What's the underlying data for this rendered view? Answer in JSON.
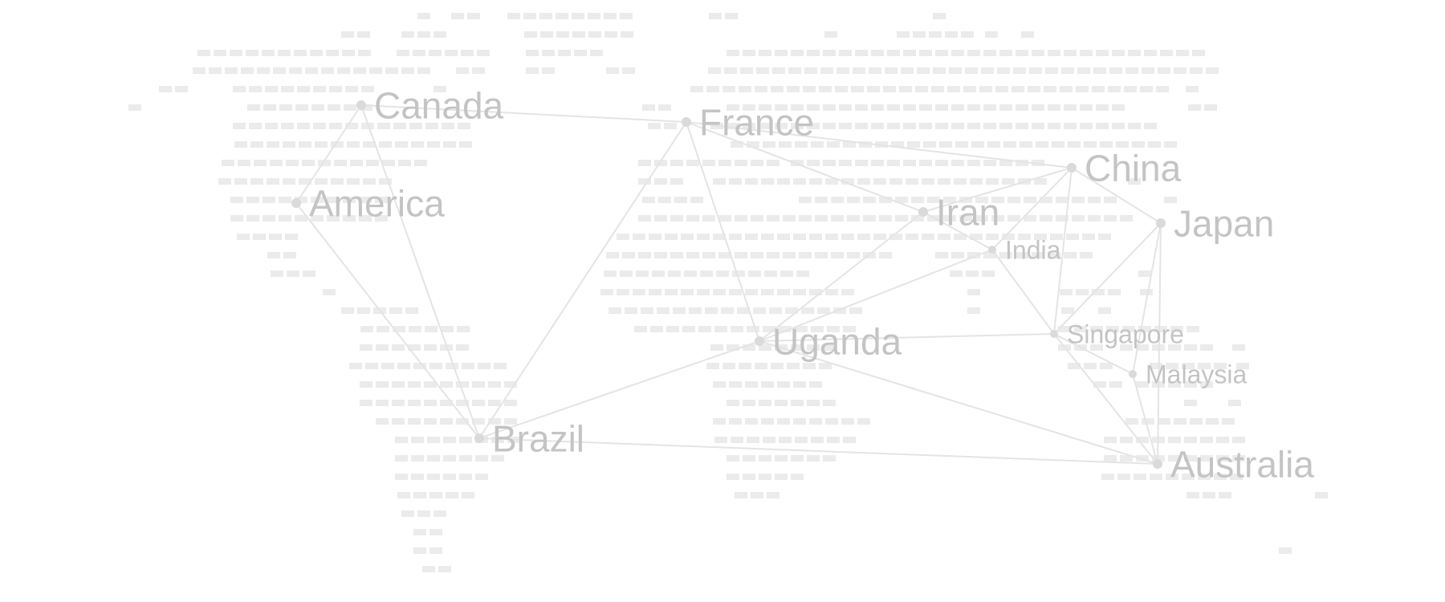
{
  "colors": {
    "background": "#ffffff",
    "land_dash": "#ebebeb",
    "connection_line": "#e4e4e4",
    "node": "#dadada",
    "label": "#c4c4c4"
  },
  "nodes": [
    {
      "id": "canada",
      "label": "Canada",
      "size": "large"
    },
    {
      "id": "america",
      "label": "America",
      "size": "large"
    },
    {
      "id": "brazil",
      "label": "Brazil",
      "size": "large"
    },
    {
      "id": "france",
      "label": "France",
      "size": "large"
    },
    {
      "id": "uganda",
      "label": "Uganda",
      "size": "large"
    },
    {
      "id": "iran",
      "label": "Iran",
      "size": "large"
    },
    {
      "id": "india",
      "label": "India",
      "size": "small"
    },
    {
      "id": "china",
      "label": "China",
      "size": "large"
    },
    {
      "id": "japan",
      "label": "Japan",
      "size": "large"
    },
    {
      "id": "singapore",
      "label": "Singapore",
      "size": "small"
    },
    {
      "id": "malaysia",
      "label": "Malaysia",
      "size": "small"
    },
    {
      "id": "australia",
      "label": "Australia",
      "size": "large"
    }
  ],
  "connections": [
    [
      "canada",
      "france"
    ],
    [
      "canada",
      "america"
    ],
    [
      "canada",
      "brazil"
    ],
    [
      "america",
      "brazil"
    ],
    [
      "brazil",
      "france"
    ],
    [
      "brazil",
      "uganda"
    ],
    [
      "brazil",
      "australia"
    ],
    [
      "france",
      "uganda"
    ],
    [
      "france",
      "iran"
    ],
    [
      "france",
      "china"
    ],
    [
      "uganda",
      "iran"
    ],
    [
      "uganda",
      "india"
    ],
    [
      "uganda",
      "singapore"
    ],
    [
      "uganda",
      "australia"
    ],
    [
      "iran",
      "china"
    ],
    [
      "iran",
      "india"
    ],
    [
      "india",
      "china"
    ],
    [
      "india",
      "singapore"
    ],
    [
      "china",
      "japan"
    ],
    [
      "china",
      "singapore"
    ],
    [
      "japan",
      "singapore"
    ],
    [
      "japan",
      "malaysia"
    ],
    [
      "japan",
      "australia"
    ],
    [
      "singapore",
      "malaysia"
    ],
    [
      "singapore",
      "australia"
    ],
    [
      "malaysia",
      "australia"
    ]
  ]
}
